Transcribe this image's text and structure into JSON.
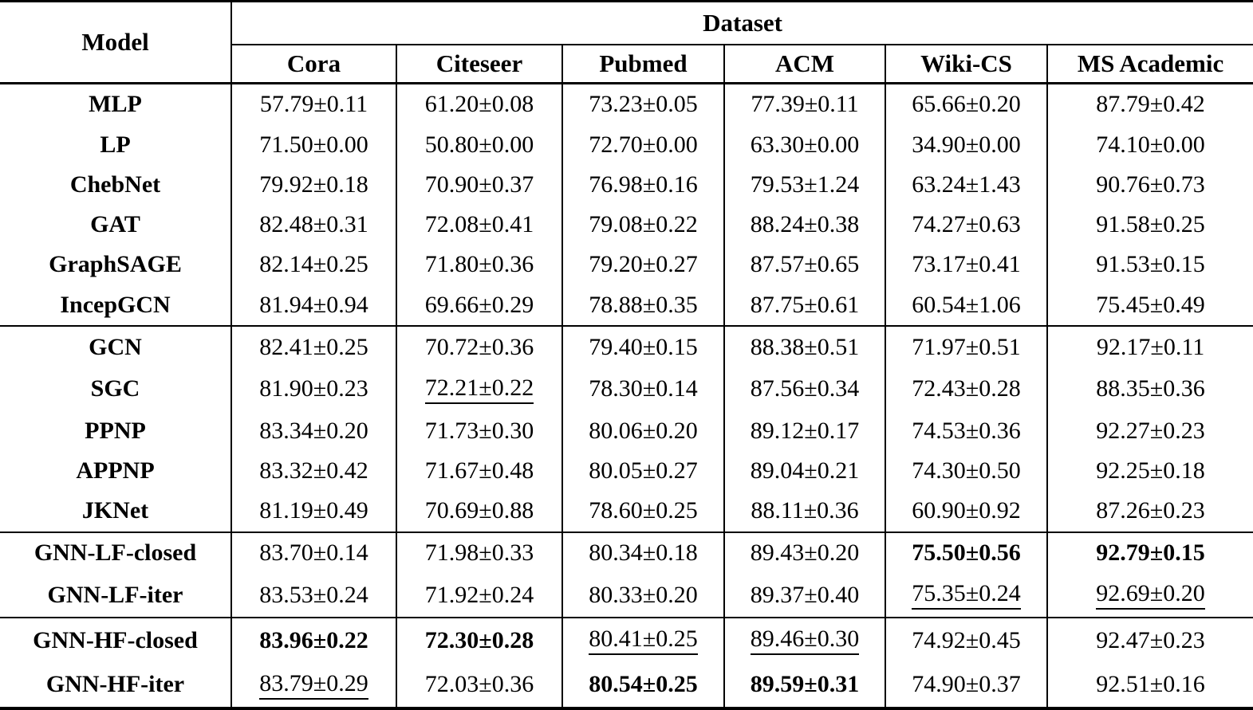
{
  "table": {
    "corner_header": "Model",
    "group_header": "Dataset",
    "columns": [
      "Cora",
      "Citeseer",
      "Pubmed",
      "ACM",
      "Wiki-CS",
      "MS Academic"
    ],
    "text_color": "#000000",
    "border_color": "#000000",
    "sections": [
      {
        "rows": [
          {
            "model": "MLP",
            "cells": [
              {
                "v": "57.79±0.11"
              },
              {
                "v": "61.20±0.08"
              },
              {
                "v": "73.23±0.05"
              },
              {
                "v": "77.39±0.11"
              },
              {
                "v": "65.66±0.20"
              },
              {
                "v": "87.79±0.42"
              }
            ]
          },
          {
            "model": "LP",
            "cells": [
              {
                "v": "71.50±0.00"
              },
              {
                "v": "50.80±0.00"
              },
              {
                "v": "72.70±0.00"
              },
              {
                "v": "63.30±0.00"
              },
              {
                "v": "34.90±0.00"
              },
              {
                "v": "74.10±0.00"
              }
            ]
          },
          {
            "model": "ChebNet",
            "cells": [
              {
                "v": "79.92±0.18"
              },
              {
                "v": "70.90±0.37"
              },
              {
                "v": "76.98±0.16"
              },
              {
                "v": "79.53±1.24"
              },
              {
                "v": "63.24±1.43"
              },
              {
                "v": "90.76±0.73"
              }
            ]
          },
          {
            "model": "GAT",
            "cells": [
              {
                "v": "82.48±0.31"
              },
              {
                "v": "72.08±0.41"
              },
              {
                "v": "79.08±0.22"
              },
              {
                "v": "88.24±0.38"
              },
              {
                "v": "74.27±0.63"
              },
              {
                "v": "91.58±0.25"
              }
            ]
          },
          {
            "model": "GraphSAGE",
            "cells": [
              {
                "v": "82.14±0.25"
              },
              {
                "v": "71.80±0.36"
              },
              {
                "v": "79.20±0.27"
              },
              {
                "v": "87.57±0.65"
              },
              {
                "v": "73.17±0.41"
              },
              {
                "v": "91.53±0.15"
              }
            ]
          },
          {
            "model": "IncepGCN",
            "cells": [
              {
                "v": "81.94±0.94"
              },
              {
                "v": "69.66±0.29"
              },
              {
                "v": "78.88±0.35"
              },
              {
                "v": "87.75±0.61"
              },
              {
                "v": "60.54±1.06"
              },
              {
                "v": "75.45±0.49"
              }
            ]
          }
        ]
      },
      {
        "rows": [
          {
            "model": "GCN",
            "cells": [
              {
                "v": "82.41±0.25"
              },
              {
                "v": "70.72±0.36"
              },
              {
                "v": "79.40±0.15"
              },
              {
                "v": "88.38±0.51"
              },
              {
                "v": "71.97±0.51"
              },
              {
                "v": "92.17±0.11"
              }
            ]
          },
          {
            "model": "SGC",
            "cells": [
              {
                "v": "81.90±0.23"
              },
              {
                "v": "72.21±0.22",
                "style": "underline"
              },
              {
                "v": "78.30±0.14"
              },
              {
                "v": "87.56±0.34"
              },
              {
                "v": "72.43±0.28"
              },
              {
                "v": "88.35±0.36"
              }
            ]
          },
          {
            "model": "PPNP",
            "cells": [
              {
                "v": "83.34±0.20"
              },
              {
                "v": "71.73±0.30"
              },
              {
                "v": "80.06±0.20"
              },
              {
                "v": "89.12±0.17"
              },
              {
                "v": "74.53±0.36"
              },
              {
                "v": "92.27±0.23"
              }
            ]
          },
          {
            "model": "APPNP",
            "cells": [
              {
                "v": "83.32±0.42"
              },
              {
                "v": "71.67±0.48"
              },
              {
                "v": "80.05±0.27"
              },
              {
                "v": "89.04±0.21"
              },
              {
                "v": "74.30±0.50"
              },
              {
                "v": "92.25±0.18"
              }
            ]
          },
          {
            "model": "JKNet",
            "cells": [
              {
                "v": "81.19±0.49"
              },
              {
                "v": "70.69±0.88"
              },
              {
                "v": "78.60±0.25"
              },
              {
                "v": "88.11±0.36"
              },
              {
                "v": "60.90±0.92"
              },
              {
                "v": "87.26±0.23"
              }
            ]
          }
        ]
      },
      {
        "rows": [
          {
            "model": "GNN-LF-closed",
            "cells": [
              {
                "v": "83.70±0.14"
              },
              {
                "v": "71.98±0.33"
              },
              {
                "v": "80.34±0.18"
              },
              {
                "v": "89.43±0.20"
              },
              {
                "v": "75.50±0.56",
                "style": "bold"
              },
              {
                "v": "92.79±0.15",
                "style": "bold"
              }
            ]
          },
          {
            "model": "GNN-LF-iter",
            "cells": [
              {
                "v": "83.53±0.24"
              },
              {
                "v": "71.92±0.24"
              },
              {
                "v": "80.33±0.20"
              },
              {
                "v": "89.37±0.40"
              },
              {
                "v": "75.35±0.24",
                "style": "underline"
              },
              {
                "v": "92.69±0.20",
                "style": "underline"
              }
            ]
          }
        ]
      },
      {
        "rows": [
          {
            "model": "GNN-HF-closed",
            "cells": [
              {
                "v": "83.96±0.22",
                "style": "bold"
              },
              {
                "v": "72.30±0.28",
                "style": "bold"
              },
              {
                "v": "80.41±0.25",
                "style": "underline"
              },
              {
                "v": "89.46±0.30",
                "style": "underline"
              },
              {
                "v": "74.92±0.45"
              },
              {
                "v": "92.47±0.23"
              }
            ]
          },
          {
            "model": "GNN-HF-iter",
            "cells": [
              {
                "v": "83.79±0.29",
                "style": "underline"
              },
              {
                "v": "72.03±0.36"
              },
              {
                "v": "80.54±0.25",
                "style": "bold"
              },
              {
                "v": "89.59±0.31",
                "style": "bold"
              },
              {
                "v": "74.90±0.37"
              },
              {
                "v": "92.51±0.16"
              }
            ]
          }
        ]
      }
    ]
  }
}
